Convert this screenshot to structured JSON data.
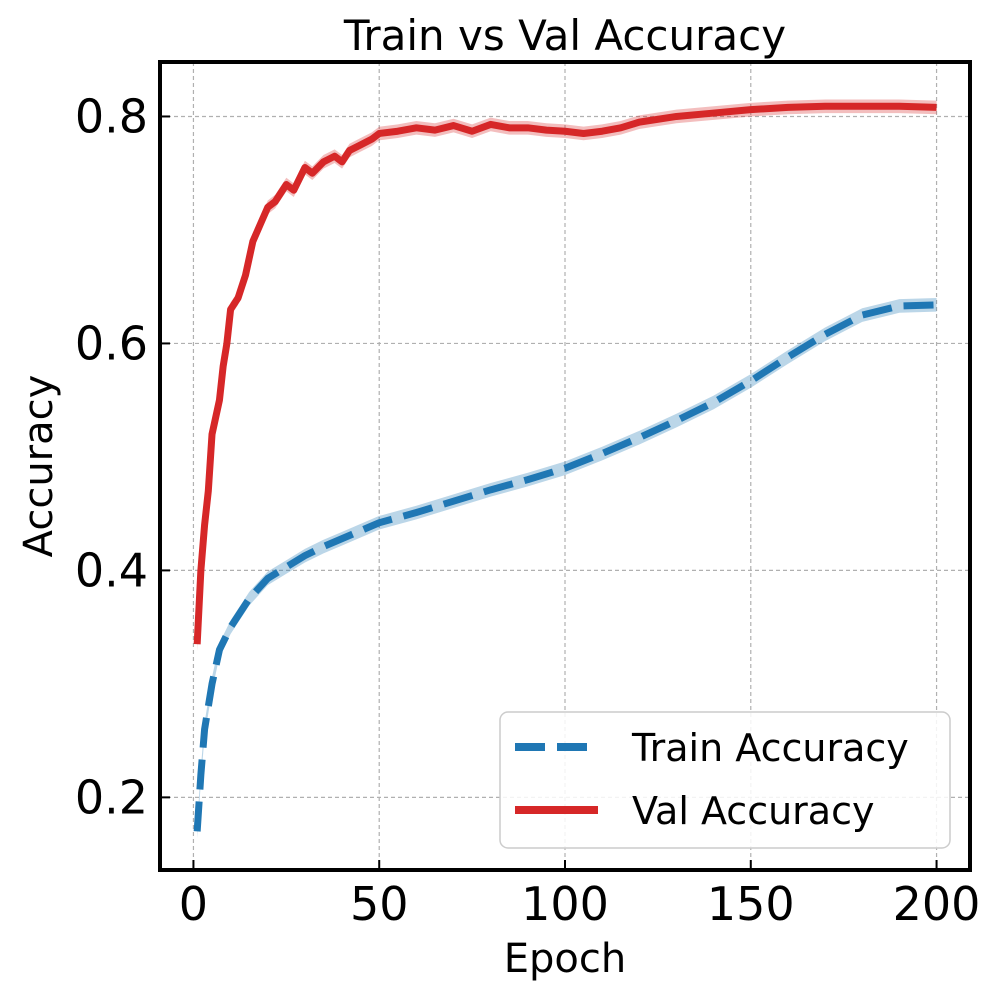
{
  "chart_data": {
    "type": "line",
    "title": "Train vs Val Accuracy",
    "xlabel": "Epoch",
    "ylabel": "Accuracy",
    "xlim": [
      -9,
      209
    ],
    "ylim": [
      0.136,
      0.848
    ],
    "xticks": [
      0,
      50,
      100,
      150,
      200
    ],
    "yticks": [
      0.2,
      0.4,
      0.6,
      0.8
    ],
    "xtick_labels": [
      "0",
      "50",
      "100",
      "150",
      "200"
    ],
    "ytick_labels": [
      "0.2",
      "0.4",
      "0.6",
      "0.8"
    ],
    "grid": true,
    "legend_position": "lower-right",
    "series": [
      {
        "name": "Train Accuracy",
        "color": "#1f77b4",
        "style": "dashed",
        "x": [
          1,
          2,
          3,
          5,
          7,
          10,
          15,
          20,
          25,
          30,
          35,
          40,
          45,
          50,
          60,
          70,
          80,
          90,
          100,
          110,
          120,
          130,
          140,
          150,
          160,
          170,
          180,
          190,
          200
        ],
        "y": [
          0.17,
          0.22,
          0.26,
          0.3,
          0.33,
          0.35,
          0.375,
          0.393,
          0.403,
          0.413,
          0.421,
          0.428,
          0.435,
          0.442,
          0.451,
          0.461,
          0.471,
          0.48,
          0.49,
          0.503,
          0.517,
          0.532,
          0.548,
          0.567,
          0.588,
          0.608,
          0.625,
          0.633,
          0.634
        ]
      },
      {
        "name": "Val Accuracy",
        "color": "#d62728",
        "style": "solid",
        "x": [
          1,
          2,
          3,
          4,
          5,
          7,
          8,
          9,
          10,
          12,
          14,
          16,
          18,
          20,
          22,
          25,
          27,
          30,
          32,
          35,
          38,
          40,
          42,
          45,
          48,
          50,
          55,
          60,
          65,
          70,
          75,
          80,
          85,
          90,
          95,
          100,
          105,
          110,
          115,
          120,
          130,
          140,
          150,
          160,
          170,
          180,
          190,
          200
        ],
        "y": [
          0.335,
          0.4,
          0.44,
          0.47,
          0.52,
          0.55,
          0.58,
          0.6,
          0.63,
          0.64,
          0.66,
          0.69,
          0.705,
          0.72,
          0.725,
          0.74,
          0.735,
          0.755,
          0.75,
          0.76,
          0.765,
          0.76,
          0.77,
          0.775,
          0.78,
          0.785,
          0.787,
          0.79,
          0.788,
          0.792,
          0.787,
          0.793,
          0.79,
          0.79,
          0.788,
          0.787,
          0.785,
          0.787,
          0.79,
          0.795,
          0.8,
          0.803,
          0.806,
          0.808,
          0.809,
          0.809,
          0.809,
          0.808
        ]
      }
    ]
  }
}
